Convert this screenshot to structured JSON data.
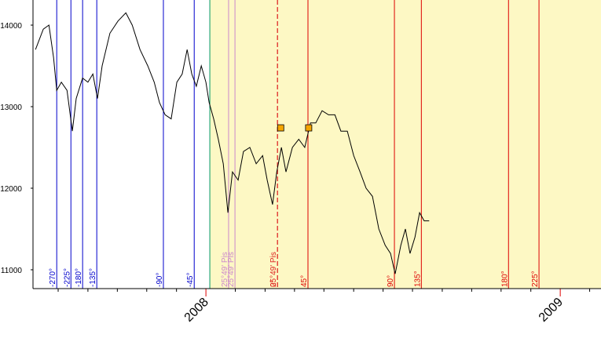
{
  "chart_data": {
    "type": "line",
    "xlim": [
      2007.512,
      2009.115
    ],
    "ylim": [
      10769,
      14308
    ],
    "xticks": [
      2008,
      2009
    ],
    "xminorticks": [
      2007.583,
      2007.667,
      2007.75,
      2007.833,
      2007.917,
      2008.083,
      2008.167,
      2008.25,
      2008.333,
      2008.417,
      2008.5,
      2008.583,
      2008.667,
      2008.75,
      2008.833,
      2008.917,
      2009.083
    ],
    "yticks": [
      11000,
      12000,
      13000,
      14000
    ],
    "shaded_from": 2008.011,
    "shade_color": "#fdf8c4",
    "series": [
      {
        "color": "#000000",
        "x": [
          2007.519,
          2007.541,
          2007.557,
          2007.57,
          2007.579,
          2007.592,
          2007.608,
          2007.623,
          2007.634,
          2007.652,
          2007.667,
          2007.681,
          2007.694,
          2007.707,
          2007.729,
          2007.752,
          2007.774,
          2007.792,
          2007.814,
          2007.836,
          2007.854,
          2007.869,
          2007.885,
          2007.902,
          2007.918,
          2007.933,
          2007.947,
          2007.96,
          2007.973,
          2007.987,
          2008.0,
          2008.009,
          2008.022,
          2008.035,
          2008.049,
          2008.062,
          2008.075,
          2008.091,
          2008.106,
          2008.124,
          2008.142,
          2008.16,
          2008.173,
          2008.188,
          2008.2,
          2008.213,
          2008.226,
          2008.244,
          2008.262,
          2008.279,
          2008.295,
          2008.31,
          2008.328,
          2008.346,
          2008.364,
          2008.381,
          2008.399,
          2008.417,
          2008.435,
          2008.452,
          2008.47,
          2008.488,
          2008.506,
          2008.521,
          2008.534,
          2008.55,
          2008.563,
          2008.576,
          2008.59,
          2008.603,
          2008.616,
          2008.63
        ],
        "values": [
          13700,
          13950,
          14000,
          13600,
          13200,
          13300,
          13200,
          12700,
          13100,
          13350,
          13300,
          13400,
          13100,
          13500,
          13900,
          14050,
          14150,
          14000,
          13700,
          13500,
          13300,
          13050,
          12900,
          12850,
          13300,
          13400,
          13700,
          13400,
          13250,
          13500,
          13300,
          13050,
          12850,
          12600,
          12300,
          11700,
          12200,
          12100,
          12450,
          12500,
          12300,
          12400,
          12100,
          11800,
          12200,
          12500,
          12200,
          12500,
          12600,
          12500,
          12800,
          12800,
          12950,
          12900,
          12900,
          12700,
          12700,
          12400,
          12200,
          12000,
          11900,
          11500,
          11300,
          11200,
          10950,
          11300,
          11500,
          11200,
          11400,
          11700,
          11600,
          11600
        ]
      }
    ],
    "markers": {
      "color": "#f5a500",
      "x": [
        2008.211,
        2008.29
      ],
      "y": [
        12740,
        12740
      ]
    },
    "vlines": [
      {
        "x": 2007.579,
        "label": "-270°",
        "color": "#0000cc"
      },
      {
        "x": 2007.619,
        "label": "-225°",
        "color": "#0000cc"
      },
      {
        "x": 2007.652,
        "label": "-180°",
        "color": "#0000cc"
      },
      {
        "x": 2007.692,
        "label": "-135°",
        "color": "#0000cc"
      },
      {
        "x": 2007.88,
        "label": "-90°",
        "color": "#0000cc"
      },
      {
        "x": 2007.967,
        "label": "-45°",
        "color": "#0000cc"
      },
      {
        "x": 2008.011,
        "color": "#009966"
      },
      {
        "x": 2008.064,
        "label": "25°49' Pis",
        "color": "#cc88cc"
      },
      {
        "x": 2008.082,
        "label": "25°49' Pis",
        "color": "#cc88cc"
      },
      {
        "x": 2008.202,
        "label": "25°49' Pis",
        "color": "#dd2222",
        "dashed": true
      },
      {
        "x": 2008.202,
        "label": "0°",
        "color": "#dd2222",
        "dashed": true
      },
      {
        "x": 2008.288,
        "label": "45°",
        "color": "#dd0000"
      },
      {
        "x": 2008.532,
        "label": "90°",
        "color": "#dd0000"
      },
      {
        "x": 2008.608,
        "label": "135°",
        "color": "#dd0000"
      },
      {
        "x": 2008.854,
        "label": "180°",
        "color": "#dd0000"
      },
      {
        "x": 2008.94,
        "label": "225°",
        "color": "#dd0000"
      }
    ]
  }
}
